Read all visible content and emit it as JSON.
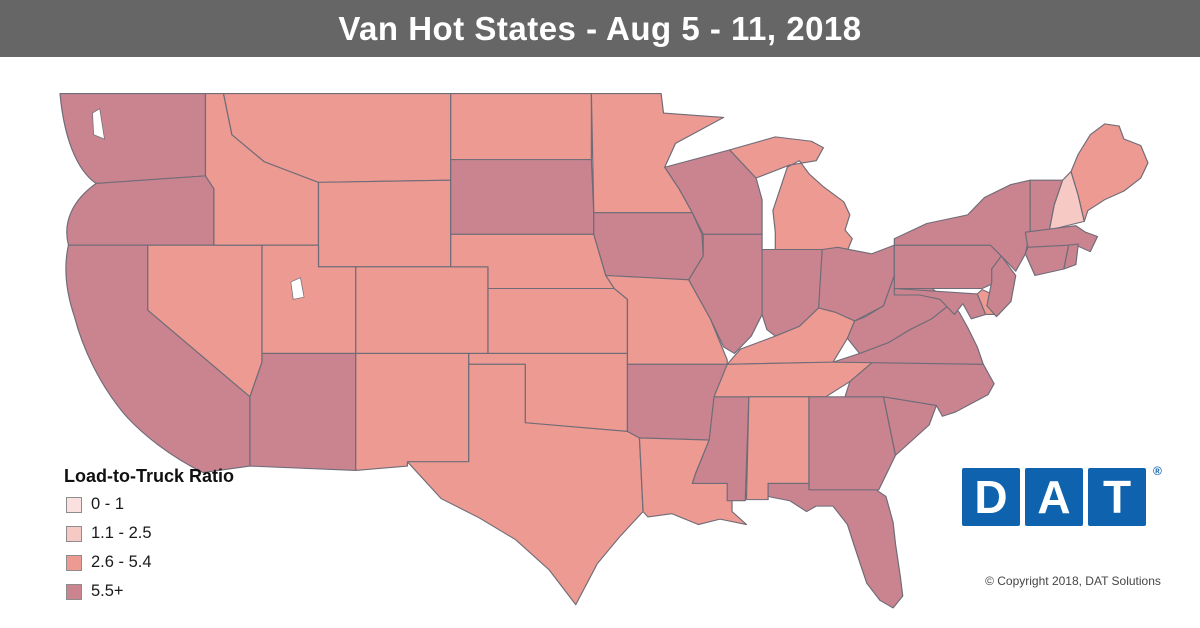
{
  "title_bar": {
    "title": "Van Hot States - Aug 5 - 11, 2018",
    "bg_color": "#666666",
    "text_color": "#FFFFFF"
  },
  "legend": {
    "title": "Load-to-Truck Ratio",
    "items": [
      {
        "label": "0 - 1",
        "color": "#FAE1E0"
      },
      {
        "label": "1.1 - 2.5",
        "color": "#F6C9C4"
      },
      {
        "label": "2.6 - 5.4",
        "color": "#EC9A92"
      },
      {
        "label": "5.5+",
        "color": "#C98490"
      }
    ]
  },
  "map": {
    "border_color": "#6F6C78",
    "water_color": "#FFFFFF",
    "states": [
      {
        "id": "WA",
        "name": "Washington",
        "bin": 3,
        "bin_label": "5.5+"
      },
      {
        "id": "OR",
        "name": "Oregon",
        "bin": 3,
        "bin_label": "5.5+"
      },
      {
        "id": "CA",
        "name": "California",
        "bin": 3,
        "bin_label": "5.5+"
      },
      {
        "id": "NV",
        "name": "Nevada",
        "bin": 2,
        "bin_label": "2.6 - 5.4"
      },
      {
        "id": "ID",
        "name": "Idaho",
        "bin": 2,
        "bin_label": "2.6 - 5.4"
      },
      {
        "id": "MT",
        "name": "Montana",
        "bin": 2,
        "bin_label": "2.6 - 5.4"
      },
      {
        "id": "WY",
        "name": "Wyoming",
        "bin": 2,
        "bin_label": "2.6 - 5.4"
      },
      {
        "id": "UT",
        "name": "Utah",
        "bin": 2,
        "bin_label": "2.6 - 5.4"
      },
      {
        "id": "CO",
        "name": "Colorado",
        "bin": 2,
        "bin_label": "2.6 - 5.4"
      },
      {
        "id": "AZ",
        "name": "Arizona",
        "bin": 3,
        "bin_label": "5.5+"
      },
      {
        "id": "NM",
        "name": "New Mexico",
        "bin": 2,
        "bin_label": "2.6 - 5.4"
      },
      {
        "id": "ND",
        "name": "North Dakota",
        "bin": 2,
        "bin_label": "2.6 - 5.4"
      },
      {
        "id": "SD",
        "name": "South Dakota",
        "bin": 3,
        "bin_label": "5.5+"
      },
      {
        "id": "NE",
        "name": "Nebraska",
        "bin": 2,
        "bin_label": "2.6 - 5.4"
      },
      {
        "id": "KS",
        "name": "Kansas",
        "bin": 2,
        "bin_label": "2.6 - 5.4"
      },
      {
        "id": "OK",
        "name": "Oklahoma",
        "bin": 2,
        "bin_label": "2.6 - 5.4"
      },
      {
        "id": "TX",
        "name": "Texas",
        "bin": 2,
        "bin_label": "2.6 - 5.4"
      },
      {
        "id": "MN",
        "name": "Minnesota",
        "bin": 2,
        "bin_label": "2.6 - 5.4"
      },
      {
        "id": "IA",
        "name": "Iowa",
        "bin": 3,
        "bin_label": "5.5+"
      },
      {
        "id": "MO",
        "name": "Missouri",
        "bin": 2,
        "bin_label": "2.6 - 5.4"
      },
      {
        "id": "AR",
        "name": "Arkansas",
        "bin": 3,
        "bin_label": "5.5+"
      },
      {
        "id": "LA",
        "name": "Louisiana",
        "bin": 2,
        "bin_label": "2.6 - 5.4"
      },
      {
        "id": "WI",
        "name": "Wisconsin",
        "bin": 3,
        "bin_label": "5.5+"
      },
      {
        "id": "IL",
        "name": "Illinois",
        "bin": 3,
        "bin_label": "5.5+"
      },
      {
        "id": "MS",
        "name": "Mississippi",
        "bin": 3,
        "bin_label": "5.5+"
      },
      {
        "id": "MI",
        "name": "Michigan",
        "bin": 2,
        "bin_label": "2.6 - 5.4"
      },
      {
        "id": "IN",
        "name": "Indiana",
        "bin": 3,
        "bin_label": "5.5+"
      },
      {
        "id": "OH",
        "name": "Ohio",
        "bin": 3,
        "bin_label": "5.5+"
      },
      {
        "id": "KY",
        "name": "Kentucky",
        "bin": 2,
        "bin_label": "2.6 - 5.4"
      },
      {
        "id": "TN",
        "name": "Tennessee",
        "bin": 2,
        "bin_label": "2.6 - 5.4"
      },
      {
        "id": "AL",
        "name": "Alabama",
        "bin": 2,
        "bin_label": "2.6 - 5.4"
      },
      {
        "id": "GA",
        "name": "Georgia",
        "bin": 3,
        "bin_label": "5.5+"
      },
      {
        "id": "FL",
        "name": "Florida",
        "bin": 3,
        "bin_label": "5.5+"
      },
      {
        "id": "SC",
        "name": "South Carolina",
        "bin": 3,
        "bin_label": "5.5+"
      },
      {
        "id": "NC",
        "name": "North Carolina",
        "bin": 3,
        "bin_label": "5.5+"
      },
      {
        "id": "VA",
        "name": "Virginia",
        "bin": 3,
        "bin_label": "5.5+"
      },
      {
        "id": "WV",
        "name": "West Virginia",
        "bin": 3,
        "bin_label": "5.5+"
      },
      {
        "id": "MD",
        "name": "Maryland",
        "bin": 3,
        "bin_label": "5.5+"
      },
      {
        "id": "DE",
        "name": "Delaware",
        "bin": 2,
        "bin_label": "2.6 - 5.4"
      },
      {
        "id": "PA",
        "name": "Pennsylvania",
        "bin": 3,
        "bin_label": "5.5+"
      },
      {
        "id": "NJ",
        "name": "New Jersey",
        "bin": 3,
        "bin_label": "5.5+"
      },
      {
        "id": "NY",
        "name": "New York",
        "bin": 3,
        "bin_label": "5.5+"
      },
      {
        "id": "VT",
        "name": "Vermont",
        "bin": 3,
        "bin_label": "5.5+"
      },
      {
        "id": "NH",
        "name": "New Hampshire",
        "bin": 1,
        "bin_label": "1.1 - 2.5"
      },
      {
        "id": "ME",
        "name": "Maine",
        "bin": 2,
        "bin_label": "2.6 - 5.4"
      },
      {
        "id": "MA",
        "name": "Massachusetts",
        "bin": 3,
        "bin_label": "5.5+"
      },
      {
        "id": "CT",
        "name": "Connecticut",
        "bin": 3,
        "bin_label": "5.5+"
      },
      {
        "id": "RI",
        "name": "Rhode Island",
        "bin": 3,
        "bin_label": "5.5+"
      }
    ]
  },
  "logo": {
    "letters": [
      "D",
      "A",
      "T"
    ],
    "registered_mark": "®",
    "color": "#0F63AE"
  },
  "footer": {
    "copyright": "© Copyright 2018, DAT Solutions"
  }
}
